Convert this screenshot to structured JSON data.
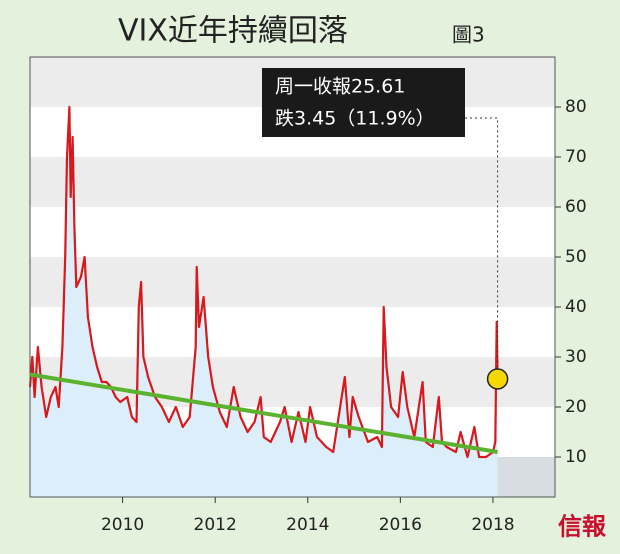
{
  "chart_data": {
    "type": "line",
    "title": "VIX近年持續回落",
    "subtitle": "圖3",
    "annotation": [
      "周一收報25.61",
      "跌3.45（11.9%）"
    ],
    "source": "信報",
    "xlim": [
      2008,
      2019.34
    ],
    "xticks": [
      2010,
      2012,
      2014,
      2016,
      2018
    ],
    "ylim": [
      2,
      90
    ],
    "yticks": [
      10,
      20,
      30,
      40,
      50,
      60,
      70,
      80
    ],
    "series": [
      {
        "color": "#d7191c",
        "fill": "#dceefa",
        "x": [
          2008.0,
          2008.05,
          2008.1,
          2008.17,
          2008.25,
          2008.35,
          2008.45,
          2008.55,
          2008.62,
          2008.7,
          2008.76,
          2008.8,
          2008.85,
          2008.88,
          2008.92,
          2008.96,
          2009.0,
          2009.1,
          2009.18,
          2009.25,
          2009.35,
          2009.45,
          2009.55,
          2009.65,
          2009.75,
          2009.85,
          2009.95,
          2010.1,
          2010.2,
          2010.3,
          2010.35,
          2010.4,
          2010.45,
          2010.55,
          2010.7,
          2010.85,
          2011.0,
          2011.15,
          2011.3,
          2011.45,
          2011.58,
          2011.6,
          2011.65,
          2011.75,
          2011.85,
          2011.95,
          2012.1,
          2012.25,
          2012.4,
          2012.55,
          2012.7,
          2012.85,
          2012.98,
          2013.05,
          2013.2,
          2013.4,
          2013.5,
          2013.65,
          2013.8,
          2013.95,
          2014.05,
          2014.2,
          2014.4,
          2014.55,
          2014.8,
          2014.9,
          2014.97,
          2015.1,
          2015.3,
          2015.5,
          2015.6,
          2015.64,
          2015.7,
          2015.8,
          2015.95,
          2016.05,
          2016.15,
          2016.3,
          2016.48,
          2016.55,
          2016.7,
          2016.83,
          2016.9,
          2017.0,
          2017.2,
          2017.3,
          2017.45,
          2017.6,
          2017.7,
          2017.85,
          2018.0,
          2018.05,
          2018.08,
          2018.1
        ],
        "values": [
          24,
          30,
          22,
          32,
          24,
          18,
          22,
          24,
          20,
          32,
          50,
          70,
          80,
          62,
          74,
          56,
          44,
          46,
          50,
          38,
          32,
          28,
          25,
          25,
          24,
          22,
          21,
          22,
          18,
          17,
          40,
          45,
          30,
          26,
          22,
          20,
          17,
          20,
          16,
          18,
          32,
          48,
          36,
          42,
          30,
          24,
          19,
          16,
          24,
          18,
          15,
          17,
          22,
          14,
          13,
          17,
          20,
          13,
          19,
          13,
          20,
          14,
          12,
          11,
          26,
          14,
          22,
          18,
          13,
          14,
          12,
          40,
          28,
          20,
          18,
          27,
          20,
          14,
          25,
          13,
          12,
          22,
          13,
          12,
          11,
          15,
          10,
          16,
          10,
          10,
          11,
          13,
          37,
          25.61
        ]
      }
    ],
    "trend": {
      "color": "#5ab22e",
      "x": [
        2008,
        2018.1
      ],
      "values": [
        26.5,
        11
      ]
    },
    "marker": {
      "color": "#f5d800",
      "x": 2018.1,
      "value": 25.61
    }
  }
}
